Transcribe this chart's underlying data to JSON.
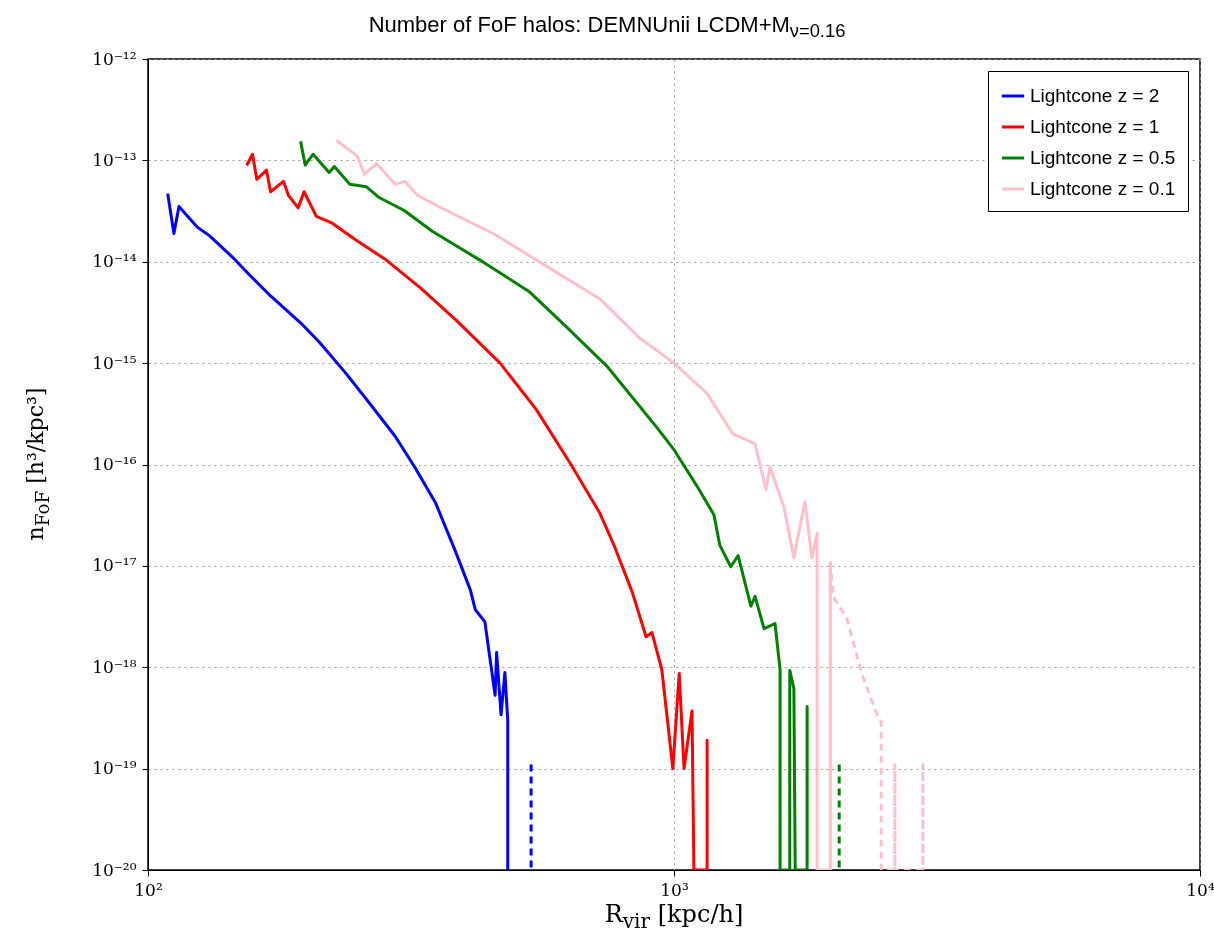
{
  "chart_data": {
    "type": "line",
    "title": "Number of FoF halos: DEMNUnii LCDM+M$_{ν=0.16}$",
    "xlabel": "R$_{vir}$ [kpc/h]",
    "ylabel": "n$_{FoF}$ [h³/kpc³]",
    "log": "xy",
    "grid": true,
    "legend": "top right",
    "line_style": "solid",
    "xlim": [
      100,
      10000
    ],
    "xticks": [
      {
        "value": 100,
        "label": "10²"
      },
      {
        "value": 1000,
        "label": "10³"
      },
      {
        "value": 10000,
        "label": "10⁴"
      }
    ],
    "ylim": [
      1e-20,
      1e-12
    ],
    "yticks": [
      {
        "value": 1e-20,
        "label": "10⁻²⁰"
      },
      {
        "value": 1e-19,
        "label": "10⁻¹⁹"
      },
      {
        "value": 1e-18,
        "label": "10⁻¹⁸"
      },
      {
        "value": 1e-17,
        "label": "10⁻¹⁷"
      },
      {
        "value": 1e-16,
        "label": "10⁻¹⁶"
      },
      {
        "value": 1e-15,
        "label": "10⁻¹⁵"
      },
      {
        "value": 1e-14,
        "label": "10⁻¹⁴"
      },
      {
        "value": 1e-13,
        "label": "10⁻¹³"
      },
      {
        "value": 1e-12,
        "label": "10⁻¹²"
      }
    ],
    "series": [
      {
        "name": "Lightcone z = 2",
        "color": "#0000ff",
        "x": [
          109,
          112,
          114.5,
          124,
          131,
          145,
          156,
          171,
          195,
          212,
          237,
          264,
          295,
          322,
          352,
          384,
          410,
          419,
          437,
          447,
          457,
          460,
          469,
          477,
          483,
          483
        ],
        "values": [
          4.7e-14,
          1.9e-14,
          3.5e-14,
          2.2e-14,
          1.8e-14,
          1.1e-14,
          7.4e-15,
          4.6e-15,
          2.5e-15,
          1.6e-15,
          8.1e-16,
          4e-16,
          1.9e-16,
          9.3e-17,
          4.2e-17,
          1.4e-17,
          5.8e-18,
          3.7e-18,
          2.8e-18,
          1.2e-18,
          5.3e-19,
          1.4e-18,
          3.4e-19,
          8.9e-19,
          3e-19,
          1e-20
        ]
      },
      {
        "name": "Lightcone z = 1",
        "color": "#ff0000",
        "x": [
          154,
          158,
          161,
          168,
          171,
          181,
          185,
          193,
          198,
          209,
          224,
          250,
          283,
          330,
          387,
          467,
          547,
          637,
          723,
          769,
          832,
          885,
          908,
          948,
          995,
          1023,
          1045,
          1082,
          1091,
          1156,
          1156,
          1156
        ],
        "values": [
          8.9e-14,
          1.15e-13,
          6.5e-14,
          8e-14,
          4.9e-14,
          6.2e-14,
          4.5e-14,
          3.4e-14,
          4.9e-14,
          2.8e-14,
          2.4e-14,
          1.6e-14,
          1.05e-14,
          5.5e-15,
          2.6e-15,
          1e-15,
          3.5e-16,
          1e-16,
          3.3e-17,
          1.6e-17,
          5.6e-18,
          2e-18,
          2.2e-18,
          9.5e-19,
          1e-19,
          8.7e-19,
          1e-19,
          3.7e-19,
          1e-20,
          1e-20,
          1.9e-19,
          1e-20
        ]
      },
      {
        "name": "Lightcone z = 0.5",
        "color": "#008000",
        "x": [
          195,
          199,
          206,
          221,
          226,
          242,
          260,
          275,
          307,
          347,
          426,
          530,
          618,
          746,
          929,
          1000,
          1102,
          1191,
          1222,
          1282,
          1324,
          1400,
          1426,
          1483,
          1556,
          1591,
          1591,
          1660,
          1660,
          1690,
          1700,
          1791,
          1791,
          1791
        ],
        "values": [
          1.54e-13,
          9e-14,
          1.15e-13,
          7.6e-14,
          8.7e-14,
          5.8e-14,
          5.5e-14,
          4.3e-14,
          3.2e-14,
          2e-14,
          1.05e-14,
          5.1e-15,
          2.4e-15,
          9.3e-16,
          2.3e-16,
          1.4e-16,
          6.3e-17,
          3.2e-17,
          1.6e-17,
          9.8e-18,
          1.26e-17,
          4e-18,
          5e-18,
          2.4e-18,
          2.7e-18,
          9.5e-19,
          1e-20,
          1e-20,
          9.3e-19,
          6.2e-19,
          1e-20,
          1e-20,
          4.1e-19,
          1e-20
        ]
      },
      {
        "name": "Lightcone z = 0.1",
        "color": "#ffc0cb",
        "x": [
          228,
          250,
          258,
          272,
          295,
          308,
          326,
          357,
          453,
          571,
          723,
          857,
          1000,
          1156,
          1294,
          1426,
          1496,
          1522,
          1618,
          1690,
          1774,
          1829,
          1871,
          1871,
          1983,
          1983
        ],
        "values": [
          1.58e-13,
          1.1e-13,
          7.3e-14,
          9.3e-14,
          5.8e-14,
          6.2e-14,
          4.5e-14,
          3.5e-14,
          1.9e-14,
          9.1e-15,
          4.3e-15,
          1.8e-15,
          1e-15,
          5e-16,
          2e-16,
          1.6e-16,
          5.7e-17,
          9.5e-17,
          3.8e-17,
          1.2e-17,
          4.3e-17,
          1.2e-17,
          2.1e-17,
          1e-20,
          1e-20,
          1.1e-17
        ]
      },
      {
        "color": "#0000ff",
        "line_style": "dashed",
        "x": [
          535,
          535
        ],
        "values": [
          1.1e-19,
          1e-20
        ]
      },
      {
        "color": "#008000",
        "line_style": "dashed",
        "x": [
          2061,
          2061
        ],
        "values": [
          1.1e-19,
          1e-20
        ]
      },
      {
        "color": "#ffc0cb",
        "line_style": "dashed",
        "x": [
          1983,
          2006,
          2133,
          2275,
          2432,
          2477,
          2477,
          2630,
          2630,
          2630,
          2973,
          2973,
          2973
        ],
        "values": [
          1.1e-17,
          5e-18,
          3e-18,
          8.7e-19,
          3.4e-19,
          2.9e-19,
          1e-20,
          1e-20,
          1.1e-19,
          1e-20,
          1e-20,
          1.1e-19,
          1e-20
        ]
      }
    ]
  }
}
